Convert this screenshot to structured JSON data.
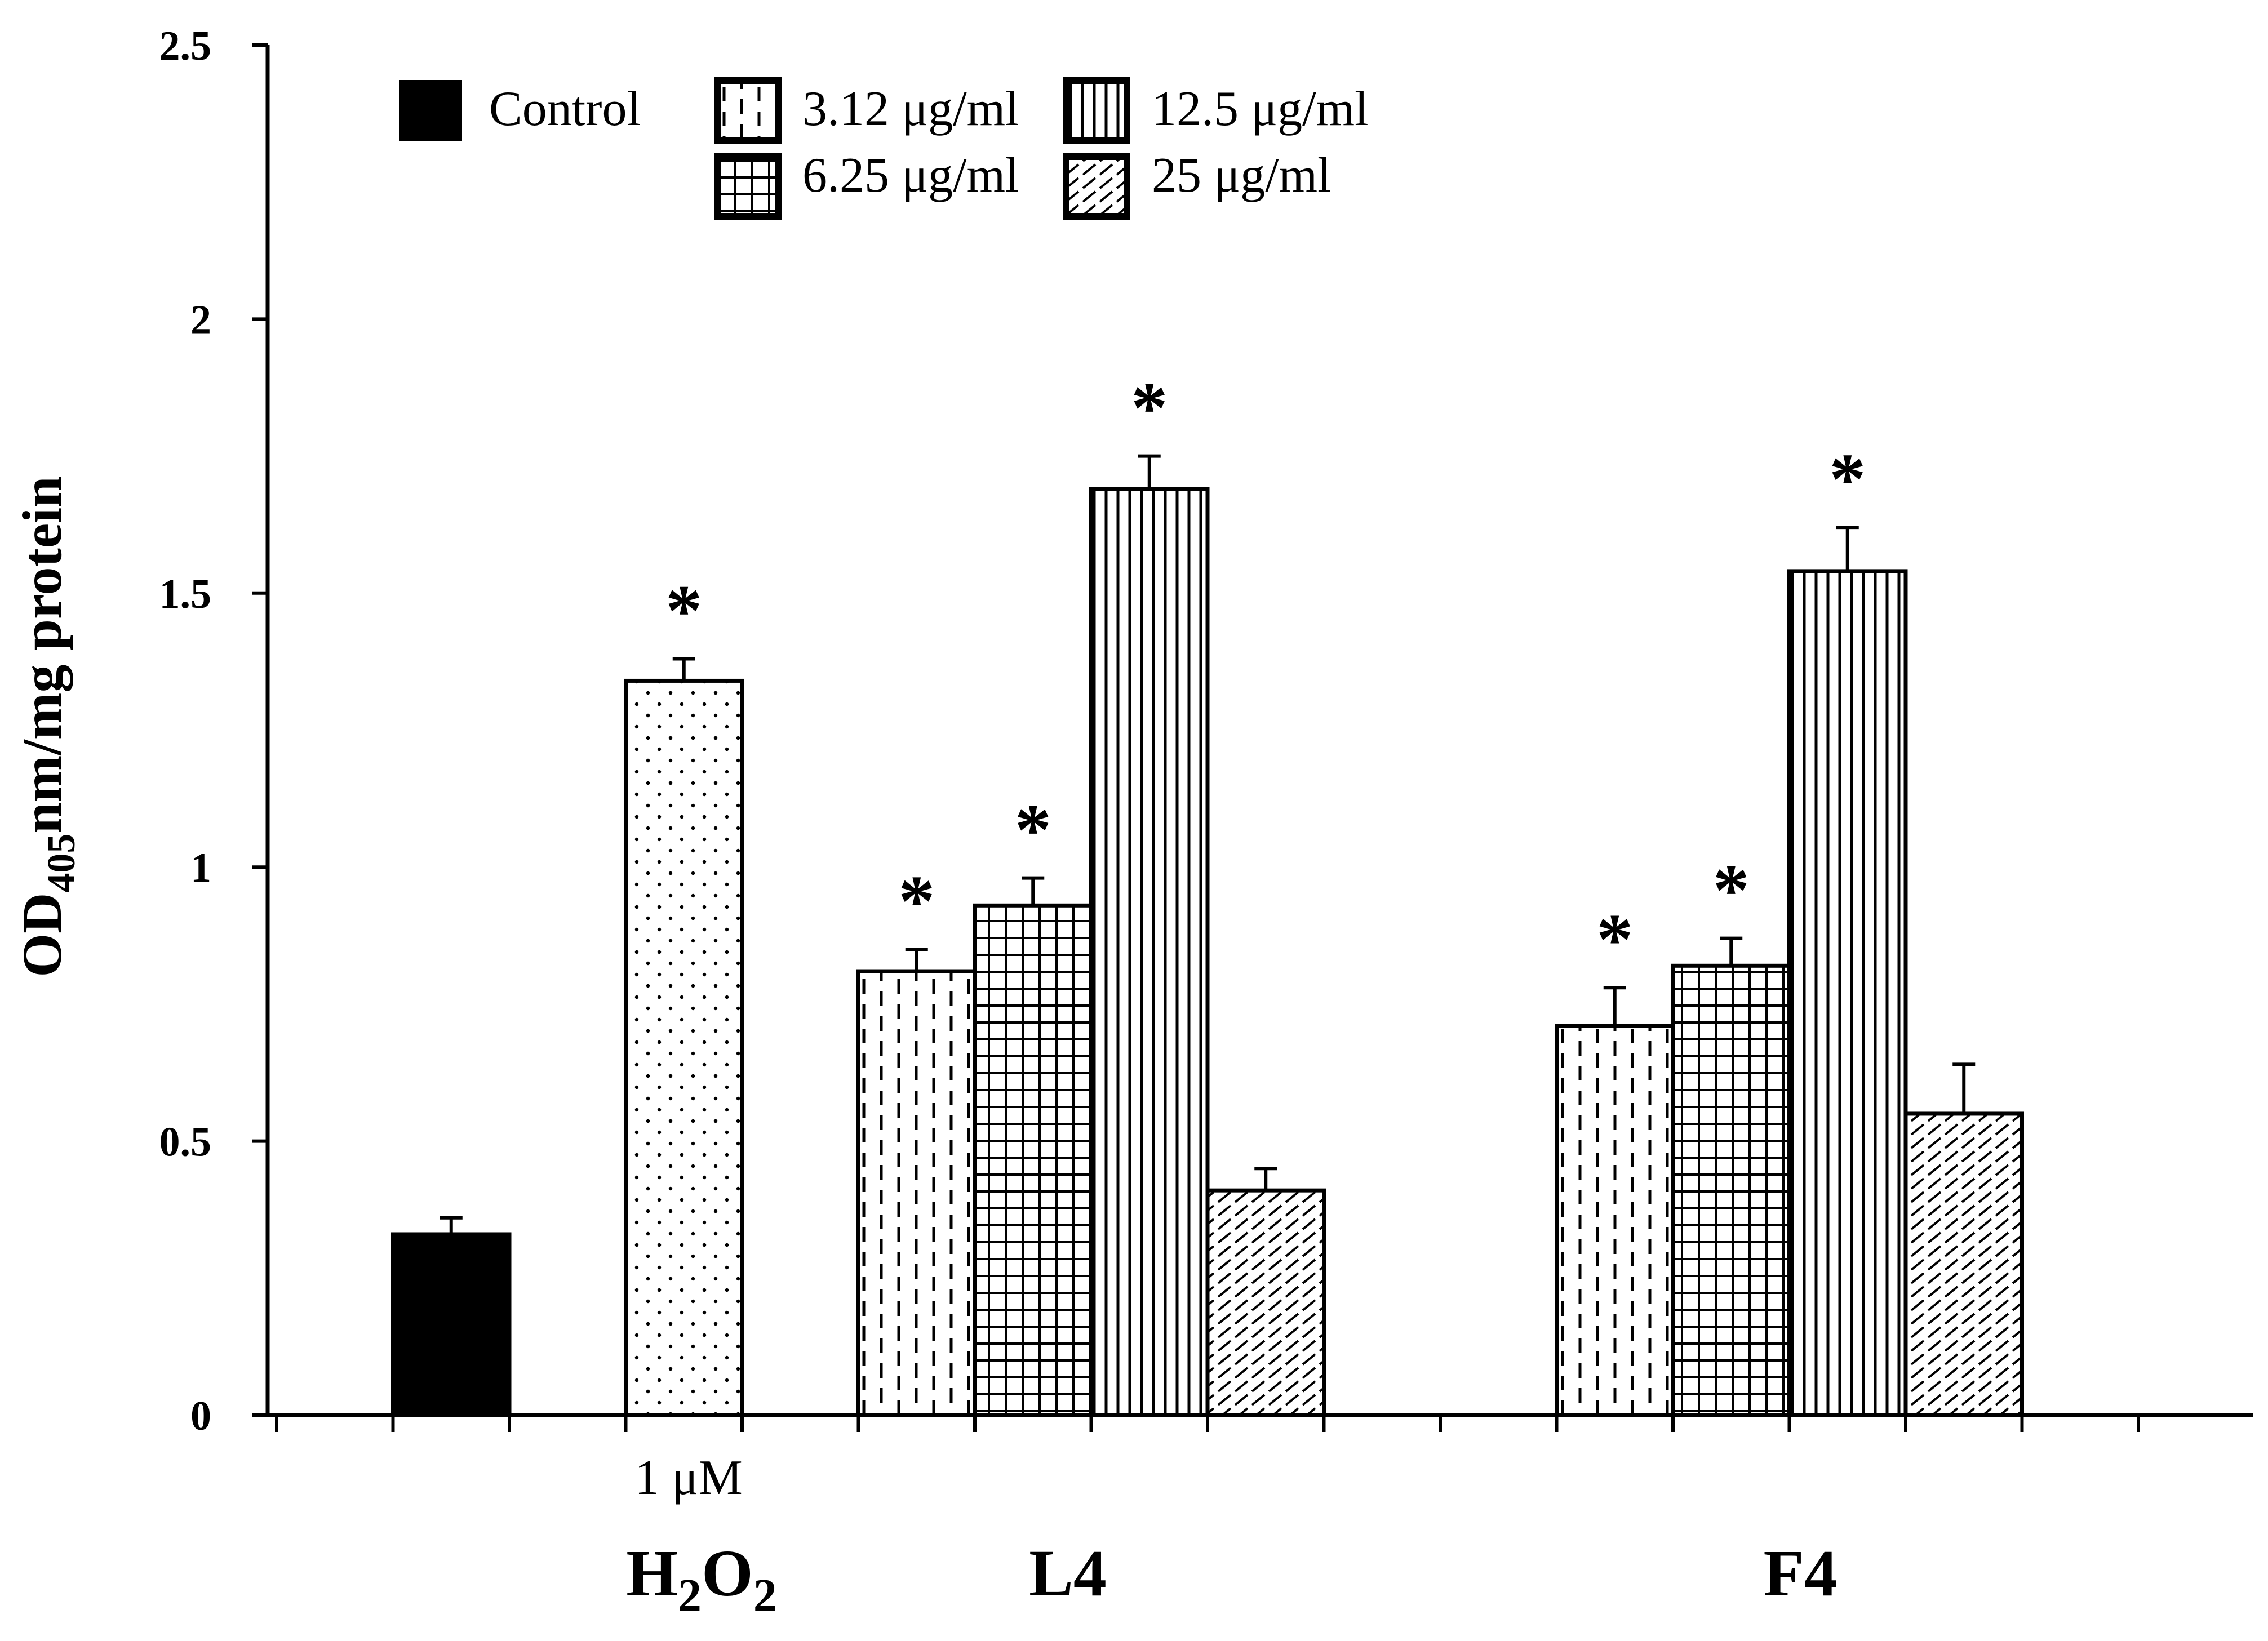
{
  "chart_data": {
    "type": "bar",
    "ylabel": {
      "prefix": "OD",
      "subscript": "405",
      "suffix": "nm/mg protein"
    },
    "ylim": [
      0,
      2.5
    ],
    "yticks": [
      "0",
      "0.5",
      "1",
      "1.5",
      "2",
      "2.5"
    ],
    "legend": {
      "placement": "top-left",
      "items": [
        {
          "key": "control",
          "label": "Control",
          "pattern": "solid"
        },
        {
          "key": "c312",
          "label": "3.12 μg/ml",
          "pattern": "dashed-vertical"
        },
        {
          "key": "c125",
          "label": "12.5 μg/ml",
          "pattern": "vertical-lines"
        },
        {
          "key": "c625",
          "label": "6.25 μg/ml",
          "pattern": "grid"
        },
        {
          "key": "c25",
          "label": "25 μg/ml",
          "pattern": "diagonal"
        }
      ]
    },
    "groups": [
      {
        "label_main": "H",
        "label_sub1": "2",
        "label_mid": "O",
        "label_sub2": "2",
        "sublabel": "1 μM"
      },
      {
        "label_main": "L4"
      },
      {
        "label_main": "F4"
      }
    ],
    "bars": [
      {
        "slot": 1,
        "series": "Control",
        "pattern": "solid",
        "value": 0.33,
        "error": 0.03,
        "significant": false
      },
      {
        "slot": 3,
        "series": "H2O2 1 μM",
        "pattern": "dots",
        "value": 1.34,
        "error": 0.04,
        "significant": true
      },
      {
        "slot": 5,
        "series": "L4 3.12 μg/ml",
        "pattern": "dashed-vertical",
        "value": 0.81,
        "error": 0.04,
        "significant": true
      },
      {
        "slot": 6,
        "series": "L4 6.25 μg/ml",
        "pattern": "grid",
        "value": 0.93,
        "error": 0.05,
        "significant": true
      },
      {
        "slot": 7,
        "series": "L4 12.5 μg/ml",
        "pattern": "vertical-lines",
        "value": 1.69,
        "error": 0.06,
        "significant": true
      },
      {
        "slot": 8,
        "series": "L4 25 μg/ml",
        "pattern": "diagonal",
        "value": 0.41,
        "error": 0.04,
        "significant": false
      },
      {
        "slot": 11,
        "series": "F4 3.12 μg/ml",
        "pattern": "dashed-vertical",
        "value": 0.71,
        "error": 0.07,
        "significant": true
      },
      {
        "slot": 12,
        "series": "F4 6.25 μg/ml",
        "pattern": "grid",
        "value": 0.82,
        "error": 0.05,
        "significant": true
      },
      {
        "slot": 13,
        "series": "F4 12.5 μg/ml",
        "pattern": "vertical-lines",
        "value": 1.54,
        "error": 0.08,
        "significant": true
      },
      {
        "slot": 14,
        "series": "F4 25 μg/ml",
        "pattern": "diagonal",
        "value": 0.55,
        "error": 0.09,
        "significant": false
      }
    ],
    "significance_marker": "*"
  }
}
